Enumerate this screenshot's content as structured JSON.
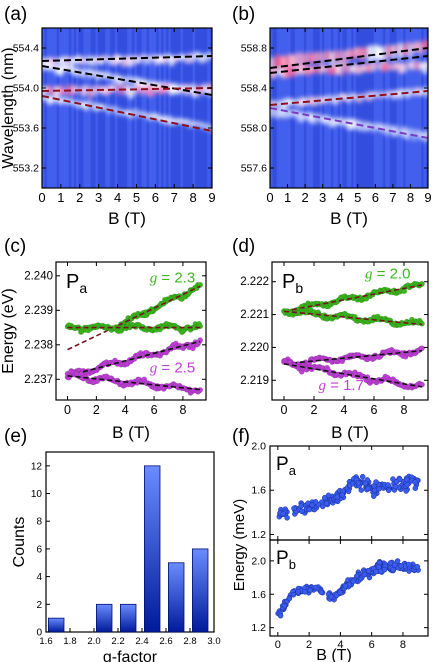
{
  "panel_labels": [
    "(a)",
    "(b)",
    "(c)",
    "(d)",
    "(e)",
    "(f)"
  ],
  "colors": {
    "green": "#3cb81e",
    "magenta": "#c040d8",
    "blue_point": "#3a5cf0",
    "bar_top": "#6a8cff",
    "bar_bottom": "#001a9a",
    "heat_bg": "#3a56e8",
    "dash_black": "#000000",
    "dash_darkred": "#8b1020",
    "dash_purple": "#7a3cc0"
  },
  "chart_data": [
    {
      "id": "a",
      "type": "heatmap",
      "xlabel": "B (T)",
      "ylabel": "Wavelength (nm)",
      "xlim": [
        0,
        9
      ],
      "ylim": [
        553.0,
        554.6
      ],
      "xticks": [
        "0",
        "1",
        "2",
        "3",
        "4",
        "5",
        "6",
        "7",
        "8",
        "9"
      ],
      "yticks": [
        {
          "v": 553.2,
          "label": "553.2"
        },
        {
          "v": 553.6,
          "label": "553.6"
        },
        {
          "v": 554.0,
          "label": "554.0"
        },
        {
          "v": 554.4,
          "label": "554.4"
        }
      ],
      "lines": [
        {
          "style": "black",
          "x": [
            0,
            9
          ],
          "y": [
            554.27,
            554.32
          ]
        },
        {
          "style": "black",
          "x": [
            0,
            9
          ],
          "y": [
            554.22,
            553.93
          ]
        },
        {
          "style": "darkred",
          "x": [
            0,
            9
          ],
          "y": [
            553.97,
            554.0
          ]
        },
        {
          "style": "darkred",
          "x": [
            0,
            9
          ],
          "y": [
            553.92,
            553.57
          ]
        }
      ]
    },
    {
      "id": "b",
      "type": "heatmap",
      "xlabel": "B (T)",
      "ylabel": "",
      "xlim": [
        0,
        9
      ],
      "ylim": [
        557.4,
        559.0
      ],
      "xticks": [
        "0",
        "1",
        "2",
        "3",
        "4",
        "5",
        "6",
        "7",
        "8",
        "9"
      ],
      "yticks": [
        {
          "v": 557.6,
          "label": "557.6"
        },
        {
          "v": 558.0,
          "label": "558.0"
        },
        {
          "v": 558.4,
          "label": "558.4"
        },
        {
          "v": 558.8,
          "label": "558.8"
        }
      ],
      "lines": [
        {
          "style": "black",
          "x": [
            0,
            9
          ],
          "y": [
            558.6,
            558.8
          ]
        },
        {
          "style": "black",
          "x": [
            0,
            9
          ],
          "y": [
            558.55,
            558.72
          ]
        },
        {
          "style": "darkred",
          "x": [
            0,
            9
          ],
          "y": [
            558.23,
            558.37
          ]
        },
        {
          "style": "purple",
          "x": [
            0,
            9
          ],
          "y": [
            558.2,
            557.9
          ]
        }
      ]
    },
    {
      "id": "c",
      "type": "scatter",
      "label": "Pa",
      "xlabel": "B (T)",
      "ylabel": "Energy (eV)",
      "xlim": [
        -0.8,
        9.6
      ],
      "ylim": [
        2.2364,
        2.2404
      ],
      "xticks": [
        {
          "v": 0,
          "label": "0"
        },
        {
          "v": 2,
          "label": "2"
        },
        {
          "v": 4,
          "label": "4"
        },
        {
          "v": 6,
          "label": "6"
        },
        {
          "v": 8,
          "label": "8"
        }
      ],
      "yticks": [
        {
          "v": 2.237,
          "label": "2.237"
        },
        {
          "v": 2.238,
          "label": "2.238"
        },
        {
          "v": 2.239,
          "label": "2.239"
        },
        {
          "v": 2.24,
          "label": "2.240"
        }
      ],
      "annotations": [
        {
          "text": "g = 2.3",
          "color": "green",
          "x": 5.7,
          "y": 2.2398
        },
        {
          "text": "g = 2.5",
          "color": "magenta",
          "x": 5.7,
          "y": 2.2372
        }
      ],
      "series": [
        {
          "color": "green",
          "x0": 3.2,
          "x1": 9.2,
          "start": 2.2385,
          "end": 2.2397
        },
        {
          "color": "green",
          "x0": 0,
          "x1": 9.2,
          "start": 2.2385,
          "end": 2.2385
        },
        {
          "color": "magenta",
          "x0": 0,
          "x1": 9.2,
          "start": 2.2371,
          "end": 2.2381
        },
        {
          "color": "magenta",
          "x0": 0,
          "x1": 9.2,
          "start": 2.2371,
          "end": 2.2367
        }
      ]
    },
    {
      "id": "d",
      "type": "scatter",
      "label": "Pb",
      "xlabel": "B (T)",
      "ylabel": "",
      "xlim": [
        -0.8,
        9.6
      ],
      "ylim": [
        2.2184,
        2.2226
      ],
      "xticks": [
        {
          "v": 0,
          "label": "0"
        },
        {
          "v": 2,
          "label": "2"
        },
        {
          "v": 4,
          "label": "4"
        },
        {
          "v": 6,
          "label": "6"
        },
        {
          "v": 8,
          "label": "8"
        }
      ],
      "yticks": [
        {
          "v": 2.219,
          "label": "2.219"
        },
        {
          "v": 2.22,
          "label": "2.220"
        },
        {
          "v": 2.221,
          "label": "2.221"
        },
        {
          "v": 2.222,
          "label": "2.222"
        }
      ],
      "annotations": [
        {
          "text": "g = 2.0",
          "color": "green",
          "x": 5.4,
          "y": 2.2221
        },
        {
          "text": "g = 1.7",
          "color": "magenta",
          "x": 2.3,
          "y": 2.2187
        }
      ],
      "series": [
        {
          "color": "green",
          "x0": 0,
          "x1": 9.2,
          "start": 2.2211,
          "end": 2.2219
        },
        {
          "color": "green",
          "x0": 0,
          "x1": 9.2,
          "start": 2.2211,
          "end": 2.2207
        },
        {
          "color": "magenta",
          "x0": 0,
          "x1": 9.2,
          "start": 2.2195,
          "end": 2.2199
        },
        {
          "color": "magenta",
          "x0": 0,
          "x1": 9.2,
          "start": 2.2195,
          "end": 2.2188
        }
      ]
    },
    {
      "id": "e",
      "type": "bar",
      "xlabel": "g-factor",
      "ylabel": "Counts",
      "xlim": [
        1.6,
        3.0
      ],
      "ylim": [
        0,
        13
      ],
      "xticks": [
        {
          "v": 1.6,
          "label": "1.6"
        },
        {
          "v": 1.8,
          "label": "1.8"
        },
        {
          "v": 2.0,
          "label": "2.0"
        },
        {
          "v": 2.2,
          "label": "2.2"
        },
        {
          "v": 2.4,
          "label": "2.4"
        },
        {
          "v": 2.6,
          "label": "2.6"
        },
        {
          "v": 2.8,
          "label": "2.8"
        },
        {
          "v": 3.0,
          "label": "3.0"
        }
      ],
      "yticks": [
        {
          "v": 0,
          "label": "0"
        },
        {
          "v": 2,
          "label": "2"
        },
        {
          "v": 4,
          "label": "4"
        },
        {
          "v": 6,
          "label": "6"
        },
        {
          "v": 8,
          "label": "8"
        },
        {
          "v": 10,
          "label": "10"
        },
        {
          "v": 12,
          "label": "12"
        }
      ],
      "bins": [
        {
          "left": 1.62,
          "right": 1.75,
          "value": 1
        },
        {
          "left": 2.02,
          "right": 2.15,
          "value": 2
        },
        {
          "left": 2.22,
          "right": 2.35,
          "value": 2
        },
        {
          "left": 2.42,
          "right": 2.55,
          "value": 12
        },
        {
          "left": 2.62,
          "right": 2.75,
          "value": 5
        },
        {
          "left": 2.82,
          "right": 2.95,
          "value": 6
        }
      ]
    },
    {
      "id": "f",
      "type": "scatter",
      "xlabel": "B (T)",
      "ylabel": "Energy (meV)",
      "xlim": [
        -0.5,
        9.6
      ],
      "xticks": [
        {
          "v": 0,
          "label": "0"
        },
        {
          "v": 2,
          "label": "2"
        },
        {
          "v": 4,
          "label": "4"
        },
        {
          "v": 6,
          "label": "6"
        },
        {
          "v": 8,
          "label": "8"
        }
      ],
      "subplots": [
        {
          "label": "Pa",
          "ylim": [
            1.15,
            2.0
          ],
          "yticks": [
            {
              "v": 1.2,
              "label": "1.2"
            },
            {
              "v": 1.6,
              "label": "1.6"
            },
            {
              "v": 2.0,
              "label": "2.0"
            }
          ],
          "trend": [
            [
              0.0,
              1.38
            ],
            [
              2.0,
              1.45
            ],
            [
              4.0,
              1.55
            ],
            [
              5.0,
              1.7
            ],
            [
              6.0,
              1.62
            ],
            [
              7.5,
              1.65
            ],
            [
              9.0,
              1.68
            ]
          ]
        },
        {
          "label": "Pb",
          "ylim": [
            1.1,
            2.25
          ],
          "yticks": [
            {
              "v": 1.2,
              "label": "1.2"
            },
            {
              "v": 1.6,
              "label": "1.6"
            },
            {
              "v": 2.0,
              "label": "2.0"
            }
          ],
          "trend": [
            [
              0.0,
              1.35
            ],
            [
              1.0,
              1.62
            ],
            [
              2.5,
              1.68
            ],
            [
              3.5,
              1.55
            ],
            [
              5.0,
              1.8
            ],
            [
              6.5,
              1.92
            ],
            [
              9.0,
              1.92
            ]
          ]
        }
      ]
    }
  ]
}
